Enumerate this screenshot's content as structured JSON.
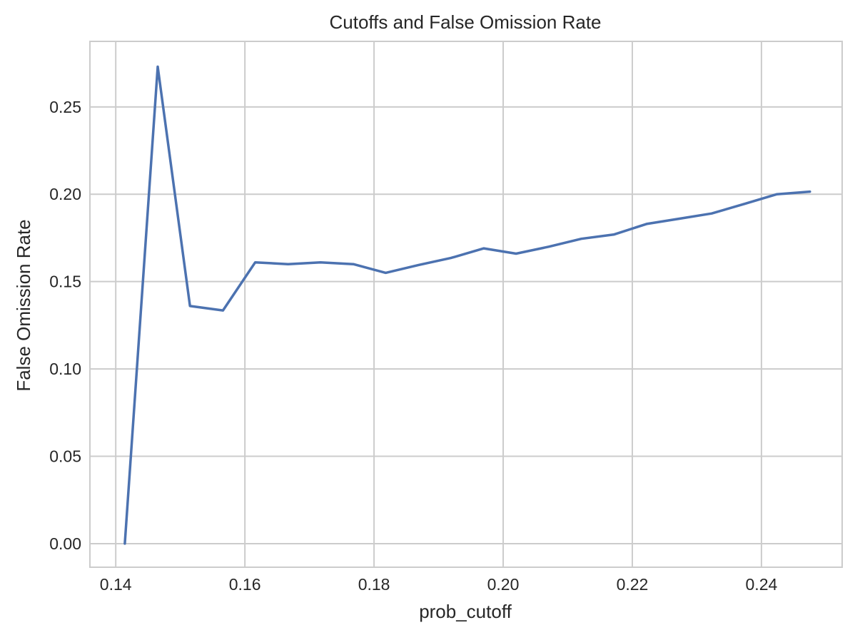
{
  "chart_data": {
    "type": "line",
    "title": "Cutoffs and False Omission Rate",
    "xlabel": "prob_cutoff",
    "ylabel": "False Omission Rate",
    "xlim": [
      0.136,
      0.2525
    ],
    "ylim": [
      -0.0135,
      0.2875
    ],
    "xticks": [
      0.14,
      0.16,
      0.18,
      0.2,
      0.22,
      0.24
    ],
    "xtick_labels": [
      "0.14",
      "0.16",
      "0.18",
      "0.20",
      "0.22",
      "0.24"
    ],
    "yticks": [
      0.0,
      0.05,
      0.1,
      0.15,
      0.2,
      0.25
    ],
    "ytick_labels": [
      "0.00",
      "0.05",
      "0.10",
      "0.15",
      "0.20",
      "0.25"
    ],
    "grid": true,
    "legend": "none",
    "series": [
      {
        "color": "#4c72b0",
        "x": [
          0.1414,
          0.1465,
          0.1515,
          0.1566,
          0.1616,
          0.1667,
          0.1717,
          0.1768,
          0.1818,
          0.1869,
          0.1919,
          0.197,
          0.202,
          0.2071,
          0.2121,
          0.2172,
          0.2222,
          0.2273,
          0.2323,
          0.2374,
          0.2424,
          0.2475
        ],
        "y": [
          0.0,
          0.273,
          0.136,
          0.1335,
          0.161,
          0.16,
          0.161,
          0.16,
          0.155,
          0.1595,
          0.1635,
          0.169,
          0.166,
          0.17,
          0.1745,
          0.177,
          0.183,
          0.186,
          0.189,
          0.1945,
          0.2,
          0.2015
        ]
      }
    ]
  }
}
